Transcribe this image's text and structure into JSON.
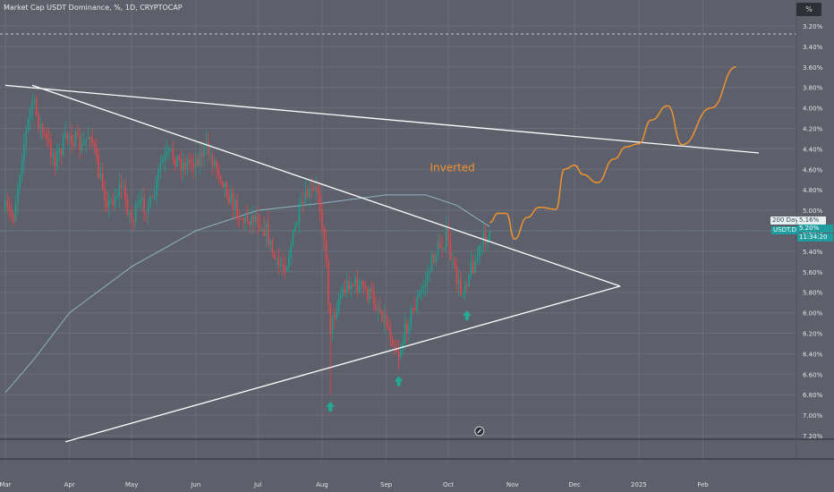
{
  "header": {
    "title": "Market Cap USDT Dominance, %, 1D, CRYPTOCAP",
    "unit_button": "%"
  },
  "price_tags": {
    "ma_name": "200 Day",
    "ma_value": "5.16%",
    "symbol": "USDT.D",
    "last_price": "5.20%",
    "countdown": "11:34:20"
  },
  "colors": {
    "background": "#5d606b",
    "candle_up": "#1f9d8c",
    "candle_down": "#e0474c",
    "ma_line": "#8fb3c2",
    "projection": "#f0912f",
    "trendline": "#ffffff",
    "arrow": "#22ab94",
    "annotation_text": "#f0912f"
  },
  "chart_data": {
    "type": "candlestick",
    "y_axis": {
      "inverted": true,
      "ticks": [
        "3.20%",
        "3.40%",
        "3.60%",
        "3.80%",
        "4.00%",
        "4.20%",
        "4.40%",
        "4.60%",
        "4.80%",
        "5.00%",
        "5.20%",
        "5.40%",
        "5.60%",
        "5.80%",
        "6.00%",
        "6.20%",
        "6.40%",
        "6.60%",
        "6.80%",
        "7.00%",
        "7.20%"
      ],
      "range": [
        3.2,
        7.2
      ]
    },
    "x_axis": {
      "ticks": [
        "Mar",
        "Apr",
        "May",
        "Jun",
        "Jul",
        "Aug",
        "Sep",
        "Oct",
        "Nov",
        "Dec",
        "2025",
        "Feb"
      ],
      "range": [
        "2024-03-01",
        "2025-02-28"
      ]
    },
    "annotation": "Inverted",
    "grid": true,
    "trendlines": [
      {
        "from": [
          "2024-03-01",
          3.78
        ],
        "to": [
          "2025-02-28",
          4.44
        ]
      },
      {
        "from": [
          "2024-03-14",
          3.78
        ],
        "to": [
          "2024-12-23",
          5.74
        ]
      },
      {
        "from": [
          "2024-03-30",
          7.26
        ],
        "to": [
          "2024-12-23",
          5.74
        ]
      }
    ],
    "ohlc_anchors": [
      [
        "2024-03-01",
        5.0
      ],
      [
        "2024-03-05",
        5.05
      ],
      [
        "2024-03-09",
        4.45
      ],
      [
        "2024-03-14",
        3.93
      ],
      [
        "2024-03-19",
        4.25
      ],
      [
        "2024-03-25",
        4.5
      ],
      [
        "2024-04-01",
        4.25
      ],
      [
        "2024-04-07",
        4.4
      ],
      [
        "2024-04-11",
        4.22
      ],
      [
        "2024-04-15",
        4.65
      ],
      [
        "2024-04-20",
        4.95
      ],
      [
        "2024-04-26",
        4.75
      ],
      [
        "2024-05-01",
        5.1
      ],
      [
        "2024-05-05",
        4.95
      ],
      [
        "2024-05-11",
        4.95
      ],
      [
        "2024-05-15",
        4.55
      ],
      [
        "2024-05-20",
        4.45
      ],
      [
        "2024-05-26",
        4.55
      ],
      [
        "2024-06-01",
        4.5
      ],
      [
        "2024-06-06",
        4.4
      ],
      [
        "2024-06-12",
        4.6
      ],
      [
        "2024-06-18",
        4.9
      ],
      [
        "2024-06-24",
        5.1
      ],
      [
        "2024-06-30",
        5.05
      ],
      [
        "2024-07-05",
        5.2
      ],
      [
        "2024-07-10",
        5.55
      ],
      [
        "2024-07-15",
        5.5
      ],
      [
        "2024-07-20",
        5.1
      ],
      [
        "2024-07-25",
        4.85
      ],
      [
        "2024-07-30",
        4.8
      ],
      [
        "2024-08-02",
        5.25
      ],
      [
        "2024-08-05",
        6.15
      ],
      [
        "2024-08-09",
        5.85
      ],
      [
        "2024-08-14",
        5.7
      ],
      [
        "2024-08-20",
        5.75
      ],
      [
        "2024-08-25",
        5.85
      ],
      [
        "2024-08-30",
        6.0
      ],
      [
        "2024-09-03",
        6.2
      ],
      [
        "2024-09-07",
        6.4
      ],
      [
        "2024-09-12",
        6.05
      ],
      [
        "2024-09-18",
        5.8
      ],
      [
        "2024-09-24",
        5.45
      ],
      [
        "2024-09-30",
        5.25
      ],
      [
        "2024-10-03",
        5.55
      ],
      [
        "2024-10-07",
        5.8
      ],
      [
        "2024-10-11",
        5.6
      ],
      [
        "2024-10-15",
        5.45
      ],
      [
        "2024-10-19",
        5.25
      ],
      [
        "2024-10-21",
        5.2
      ]
    ],
    "ma200_anchors": [
      [
        "2024-03-01",
        6.78
      ],
      [
        "2024-03-15",
        6.45
      ],
      [
        "2024-04-01",
        6.0
      ],
      [
        "2024-05-01",
        5.55
      ],
      [
        "2024-06-01",
        5.2
      ],
      [
        "2024-07-01",
        5.0
      ],
      [
        "2024-08-01",
        4.93
      ],
      [
        "2024-09-01",
        4.85
      ],
      [
        "2024-09-20",
        4.85
      ],
      [
        "2024-10-05",
        4.95
      ],
      [
        "2024-10-21",
        5.16
      ]
    ],
    "projection": [
      [
        "2024-10-21",
        5.12
      ],
      [
        "2024-10-25",
        5.03
      ],
      [
        "2024-10-29",
        5.03
      ],
      [
        "2024-11-02",
        5.28
      ],
      [
        "2024-11-08",
        5.07
      ],
      [
        "2024-11-14",
        4.97
      ],
      [
        "2024-11-22",
        4.99
      ],
      [
        "2024-11-26",
        4.6
      ],
      [
        "2024-12-01",
        4.56
      ],
      [
        "2024-12-05",
        4.65
      ],
      [
        "2024-12-12",
        4.73
      ],
      [
        "2024-12-20",
        4.5
      ],
      [
        "2024-12-26",
        4.38
      ],
      [
        "2025-01-01",
        4.35
      ],
      [
        "2025-01-07",
        4.12
      ],
      [
        "2025-01-15",
        3.98
      ],
      [
        "2025-01-22",
        4.36
      ],
      [
        "2025-02-05",
        4.0
      ],
      [
        "2025-02-17",
        3.6
      ]
    ],
    "arrows": [
      {
        "date": "2024-08-05",
        "value": 6.92
      },
      {
        "date": "2024-09-07",
        "value": 6.67
      },
      {
        "date": "2024-10-10",
        "value": 6.03
      }
    ]
  }
}
